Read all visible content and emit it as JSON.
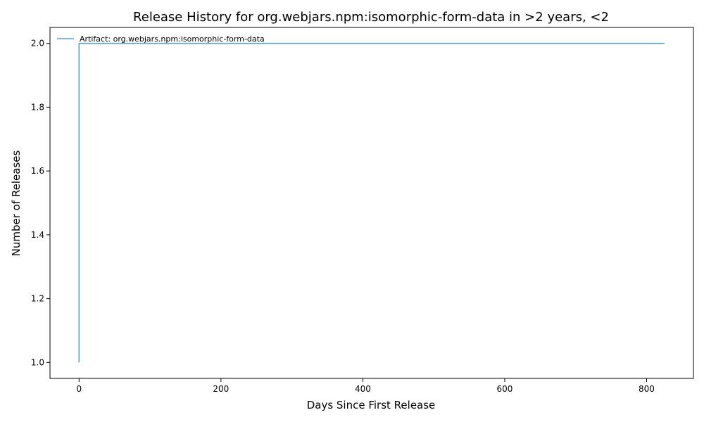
{
  "chart_data": {
    "type": "line",
    "title": "Release History for org.webjars.npm:isomorphic-form-data in >2 years, <2",
    "xlabel": "Days Since First Release",
    "ylabel": "Number of Releases",
    "xlim": [
      -41,
      866
    ],
    "ylim": [
      0.95,
      2.05
    ],
    "xticks": [
      0,
      200,
      400,
      600,
      800
    ],
    "yticks": [
      1.0,
      1.2,
      1.4,
      1.6,
      1.8,
      2.0
    ],
    "xtick_labels": [
      "0",
      "200",
      "400",
      "600",
      "800"
    ],
    "ytick_labels": [
      "1.0",
      "1.2",
      "1.4",
      "1.6",
      "1.8",
      "2.0"
    ],
    "grid": false,
    "legend_position": "upper-left",
    "series": [
      {
        "name": "Artifact: org.webjars.npm:isomorphic-form-data",
        "color": "#5aa3cf",
        "step": "post",
        "x": [
          0,
          0,
          825
        ],
        "y": [
          1,
          2,
          2
        ]
      }
    ]
  }
}
